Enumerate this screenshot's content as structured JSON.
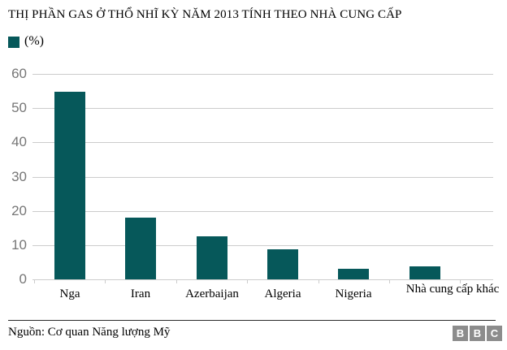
{
  "title": "THỊ PHẦN GAS Ở THỔ NHĨ KỲ NĂM 2013 TÍNH THEO NHÀ CUNG CẤP",
  "legend": {
    "label": "(%)",
    "swatch_color": "#06585a"
  },
  "chart_data": {
    "type": "bar",
    "title": "THỊ PHẦN GAS Ở THỔ NHĨ KỲ NĂM 2013 TÍNH THEO NHÀ CUNG CẤP",
    "categories": [
      "Nga",
      "Iran",
      "Azerbaijan",
      "Algeria",
      "Nigeria",
      "Nhà cung cấp khác"
    ],
    "values": [
      54.8,
      18,
      12.6,
      8.8,
      3.2,
      3.8
    ],
    "xlabel": "",
    "ylabel": "(%)",
    "ylim": [
      0,
      60
    ],
    "yticks": [
      0,
      10,
      20,
      30,
      40,
      50,
      60
    ],
    "grid": true,
    "legend_position": "top-left",
    "bar_color": "#06585a",
    "grid_color": "#cccccc",
    "axis_label_color": "#767676"
  },
  "footer": {
    "source": "Nguồn: Cơ quan Năng lượng Mỹ",
    "bbc_letters": [
      "B",
      "B",
      "C"
    ]
  }
}
